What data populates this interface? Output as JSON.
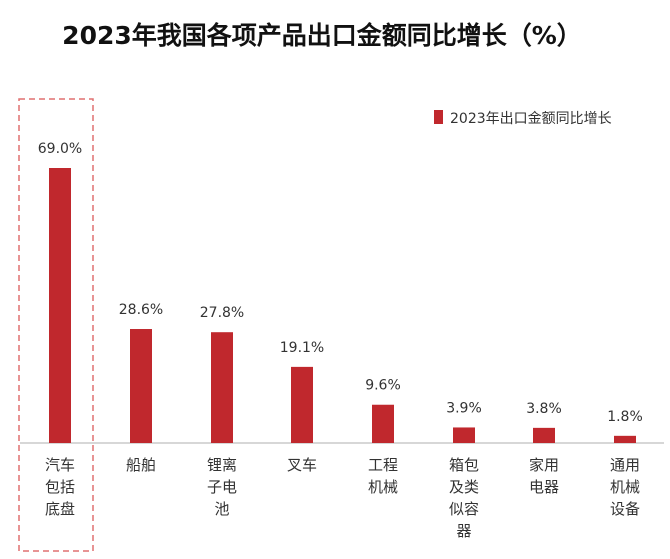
{
  "chart_data": {
    "type": "bar",
    "title": "2023年我国各项产品出口金额同比增长（%）",
    "categories": [
      [
        "汽车",
        "包括",
        "底盘"
      ],
      [
        "船舶"
      ],
      [
        "锂离",
        "子电",
        "池"
      ],
      [
        "叉车"
      ],
      [
        "工程",
        "机械"
      ],
      [
        "箱包",
        "及类",
        "似容",
        "器"
      ],
      [
        "家用",
        "电器"
      ],
      [
        "通用",
        "机械",
        "设备"
      ]
    ],
    "values": [
      69.0,
      28.6,
      27.8,
      19.1,
      9.6,
      3.9,
      3.8,
      1.8
    ],
    "value_labels": [
      "69.0%",
      "28.6%",
      "27.8%",
      "19.1%",
      "9.6%",
      "3.9%",
      "3.8%",
      "1.8%"
    ],
    "series_name": "2023年出口金额同比增长",
    "legend_position": "top-right",
    "ylim": [
      0,
      69.0
    ],
    "xlabel": "",
    "ylabel": "",
    "grid": false,
    "highlight_index": 0,
    "colors": {
      "bar": "#c0282d",
      "axis": "#bfbfbf",
      "highlight_border": "#e07070"
    }
  }
}
